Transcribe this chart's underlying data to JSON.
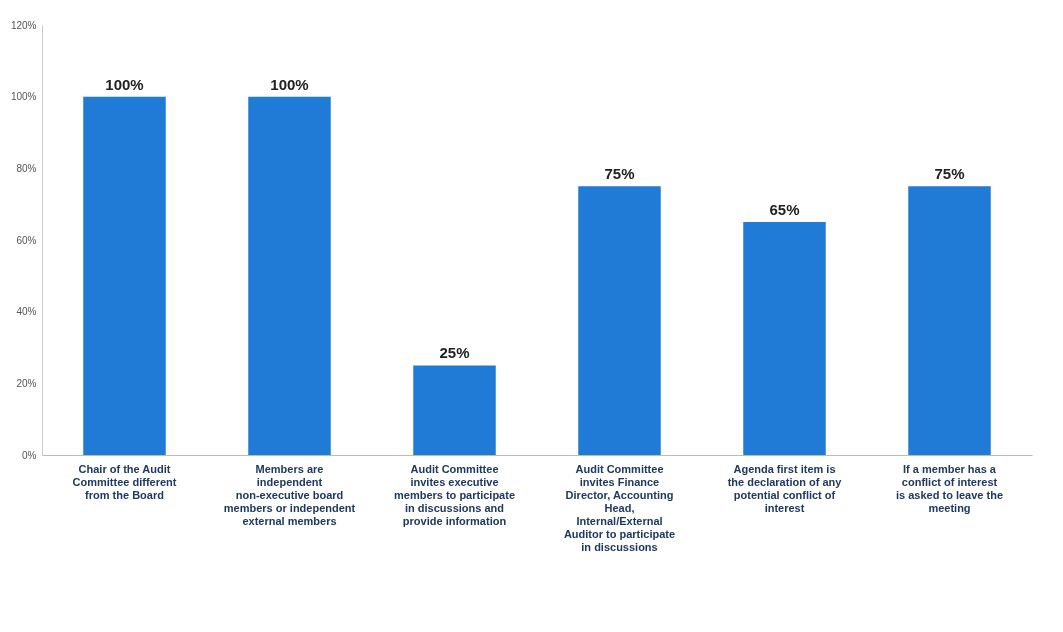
{
  "chart_data": {
    "type": "bar",
    "categories": [
      "Chair of the Audit Committee different from the Board",
      "Members are independent non-executive board members or independent external members",
      "Audit Committee invites executive members to participate in discussions and provide information",
      "Audit Committee invites Finance Director, Accounting Head, Internal/External Auditor to participate in discussions",
      "Agenda first item is the declaration of any potential conflict of interest",
      "If a member has a conflict of interest is asked to leave the meeting"
    ],
    "values": [
      100,
      100,
      25,
      75,
      65,
      75
    ],
    "value_labels": [
      "100%",
      "100%",
      "25%",
      "75%",
      "65%",
      "75%"
    ],
    "color": "#1f7bd6",
    "ylim": [
      0,
      120
    ],
    "yticks": [
      {
        "value": 0,
        "label": "0%"
      },
      {
        "value": 20,
        "label": "20%"
      },
      {
        "value": 40,
        "label": "40%"
      },
      {
        "value": 60,
        "label": "60%"
      },
      {
        "value": 80,
        "label": "80%"
      },
      {
        "value": 100,
        "label": "100%"
      },
      {
        "value": 120,
        "label": "120%"
      }
    ],
    "grid": false
  }
}
